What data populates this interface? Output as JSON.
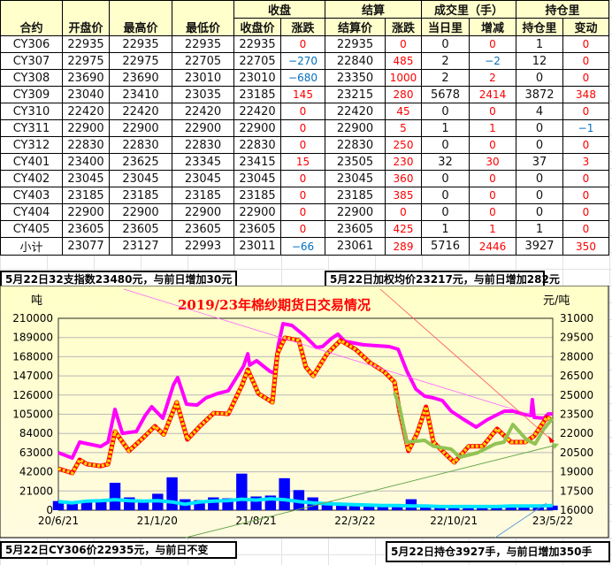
{
  "table": {
    "group_headers": {
      "close": "收盘",
      "settle": "结算",
      "volume": "成交里（手）",
      "oi": "持仓里"
    },
    "headers": [
      "合约",
      "开盘价",
      "最高价",
      "最低价",
      "收盘价",
      "涨跌",
      "结算价",
      "涨跌",
      "当日里",
      "增减",
      "持仓里",
      "变动"
    ],
    "rows": [
      [
        "CY306",
        "22935",
        "22935",
        "22935",
        "22935",
        "0",
        "22935",
        "0",
        "0",
        "0",
        "1",
        "0"
      ],
      [
        "CY307",
        "22975",
        "22975",
        "22705",
        "22705",
        "−270",
        "22840",
        "485",
        "2",
        "−2",
        "12",
        "0"
      ],
      [
        "CY308",
        "23690",
        "23690",
        "23010",
        "23010",
        "−680",
        "23350",
        "1000",
        "2",
        "2",
        "0",
        "0"
      ],
      [
        "CY309",
        "23040",
        "23410",
        "23035",
        "23185",
        "145",
        "23215",
        "280",
        "5678",
        "2414",
        "3872",
        "348"
      ],
      [
        "CY310",
        "22420",
        "22420",
        "22420",
        "22420",
        "0",
        "22420",
        "45",
        "0",
        "0",
        "4",
        "0"
      ],
      [
        "CY311",
        "22900",
        "22900",
        "22900",
        "22900",
        "0",
        "22900",
        "5",
        "1",
        "1",
        "0",
        "−1"
      ],
      [
        "CY312",
        "22830",
        "22830",
        "22830",
        "22830",
        "0",
        "22830",
        "250",
        "0",
        "0",
        "0",
        "0"
      ],
      [
        "CY401",
        "23400",
        "23625",
        "23345",
        "23415",
        "15",
        "23505",
        "230",
        "32",
        "30",
        "37",
        "3"
      ],
      [
        "CY402",
        "23045",
        "23045",
        "23045",
        "23045",
        "0",
        "23045",
        "360",
        "0",
        "0",
        "0",
        "0"
      ],
      [
        "CY403",
        "23185",
        "23185",
        "23185",
        "23185",
        "0",
        "23185",
        "385",
        "0",
        "0",
        "0",
        "0"
      ],
      [
        "CY404",
        "22900",
        "22900",
        "22900",
        "22900",
        "0",
        "22900",
        "0",
        "0",
        "0",
        "0",
        "0"
      ],
      [
        "CY405",
        "23605",
        "23605",
        "23605",
        "23605",
        "0",
        "23605",
        "425",
        "1",
        "1",
        "1",
        "0"
      ],
      [
        "小计",
        "23077",
        "23127",
        "22993",
        "23011",
        "−66",
        "23061",
        "289",
        "5716",
        "2446",
        "3927",
        "350"
      ]
    ]
  },
  "notes": {
    "top_left": "5月22日32支指数23480元，与前日增加30元",
    "top_right": "5月22日加权均价23217元，与前日增加282元",
    "bottom_left": "5月22日CY306价22935元，与前日不变",
    "bottom_right": "5月22日持仓3927手，与前日增加350手"
  },
  "colors": {
    "up": "#ff0000",
    "down": "#0070c0",
    "header_bg": "#ffffcc",
    "chart_bg": "#ffffc8"
  },
  "chart_data": {
    "type": "line",
    "title": "2019/23年棉纱期货日交易情况",
    "ylabel_left": "吨",
    "ylabel_right": "元/吨",
    "ylim_left": [
      0,
      210000
    ],
    "ylim_right": [
      16000,
      31000
    ],
    "yticks_left": [
      "210000",
      "189000",
      "168000",
      "147000",
      "126000",
      "105000",
      "84000",
      "63000",
      "42000",
      "21000",
      "0"
    ],
    "yticks_right": [
      "31000",
      "29500",
      "28000",
      "26500",
      "25000",
      "23500",
      "22000",
      "20500",
      "19000",
      "17500",
      "16000"
    ],
    "xlim": [
      "2020-06-21",
      "2023-05-22"
    ],
    "xticks": [
      [
        "2020-06-21",
        "20/6/21"
      ],
      [
        "2021-01-20",
        "21/1/20"
      ],
      [
        "2021-08-21",
        "21/8/21"
      ],
      [
        "2022-03-22",
        "22/3/22"
      ],
      [
        "2022-10-21",
        "22/10/21"
      ],
      [
        "2023-05-22",
        "23/5/22"
      ]
    ],
    "grid": true,
    "lines": [
      {
        "color": "#ff00ff",
        "axis": "right",
        "points": [
          [
            "2020-06-21",
            20490
          ],
          [
            "2020-07-21",
            20080
          ],
          [
            "2020-08-06",
            21320
          ],
          [
            "2020-09-20",
            20980
          ],
          [
            "2020-10-06",
            21320
          ],
          [
            "2020-10-21",
            23880
          ],
          [
            "2020-11-06",
            22010
          ],
          [
            "2020-12-06",
            22150
          ],
          [
            "2020-12-25",
            23400
          ],
          [
            "2021-01-08",
            24090
          ],
          [
            "2021-02-01",
            23190
          ],
          [
            "2021-02-24",
            25810
          ],
          [
            "2021-03-05",
            26370
          ],
          [
            "2021-03-24",
            24290
          ],
          [
            "2021-04-16",
            24220
          ],
          [
            "2021-05-05",
            24780
          ],
          [
            "2021-05-30",
            25120
          ],
          [
            "2021-06-22",
            25330
          ],
          [
            "2021-07-06",
            26160
          ],
          [
            "2021-07-25",
            27270
          ],
          [
            "2021-08-03",
            28230
          ],
          [
            "2021-08-07",
            27340
          ],
          [
            "2021-08-22",
            27680
          ],
          [
            "2021-09-20",
            26850
          ],
          [
            "2021-09-29",
            26710
          ],
          [
            "2021-10-08",
            28930
          ],
          [
            "2021-10-18",
            30580
          ],
          [
            "2021-11-06",
            30450
          ],
          [
            "2021-12-04",
            29620
          ],
          [
            "2021-12-29",
            28720
          ],
          [
            "2022-01-11",
            28790
          ],
          [
            "2022-01-30",
            29410
          ],
          [
            "2022-02-13",
            29760
          ],
          [
            "2022-02-28",
            29200
          ],
          [
            "2022-04-08",
            28930
          ],
          [
            "2022-06-04",
            28790
          ],
          [
            "2022-06-23",
            28580
          ],
          [
            "2022-07-12",
            26850
          ],
          [
            "2022-07-31",
            25470
          ],
          [
            "2022-08-19",
            24920
          ],
          [
            "2022-09-07",
            24780
          ],
          [
            "2022-09-26",
            24570
          ],
          [
            "2022-10-15",
            23740
          ],
          [
            "2022-11-13",
            23050
          ],
          [
            "2022-12-08",
            22500
          ],
          [
            "2022-12-31",
            23050
          ],
          [
            "2023-01-19",
            23400
          ],
          [
            "2023-02-07",
            23740
          ],
          [
            "2023-02-26",
            23740
          ],
          [
            "2023-03-17",
            23530
          ],
          [
            "2023-04-05",
            23400
          ],
          [
            "2023-04-08",
            24640
          ],
          [
            "2023-04-12",
            23260
          ],
          [
            "2023-05-03",
            23190
          ],
          [
            "2023-05-12",
            23530
          ],
          [
            "2023-05-22",
            23530
          ]
        ]
      },
      {
        "color": "#ff0000",
        "marker_color": "#ffd700",
        "axis": "right",
        "points": [
          [
            "2020-06-21",
            19250
          ],
          [
            "2020-07-21",
            18900
          ],
          [
            "2020-08-06",
            19940
          ],
          [
            "2020-08-21",
            19600
          ],
          [
            "2020-09-20",
            19450
          ],
          [
            "2020-10-06",
            19600
          ],
          [
            "2020-10-21",
            22150
          ],
          [
            "2020-11-20",
            20630
          ],
          [
            "2020-12-21",
            21670
          ],
          [
            "2021-01-15",
            22570
          ],
          [
            "2021-02-03",
            21900
          ],
          [
            "2021-03-03",
            24430
          ],
          [
            "2021-03-26",
            21530
          ],
          [
            "2021-04-22",
            22570
          ],
          [
            "2021-05-22",
            23600
          ],
          [
            "2021-06-22",
            23530
          ],
          [
            "2021-07-22",
            25810
          ],
          [
            "2021-08-03",
            26990
          ],
          [
            "2021-08-26",
            25120
          ],
          [
            "2021-09-10",
            24780
          ],
          [
            "2021-09-25",
            24430
          ],
          [
            "2021-10-06",
            28230
          ],
          [
            "2021-10-22",
            29480
          ],
          [
            "2021-11-21",
            29270
          ],
          [
            "2021-12-06",
            27200
          ],
          [
            "2021-12-22",
            26500
          ],
          [
            "2022-01-21",
            28230
          ],
          [
            "2022-02-19",
            29270
          ],
          [
            "2022-03-23",
            28580
          ],
          [
            "2022-04-23",
            27540
          ],
          [
            "2022-05-23",
            26850
          ],
          [
            "2022-06-15",
            26020
          ],
          [
            "2022-06-26",
            23740
          ],
          [
            "2022-07-15",
            20630
          ],
          [
            "2022-08-03",
            22010
          ],
          [
            "2022-08-22",
            24090
          ],
          [
            "2022-09-07",
            21320
          ],
          [
            "2022-09-30",
            20490
          ],
          [
            "2022-10-22",
            19730
          ],
          [
            "2022-11-22",
            21000
          ],
          [
            "2022-12-22",
            21000
          ],
          [
            "2023-01-22",
            22360
          ],
          [
            "2023-02-21",
            21320
          ],
          [
            "2023-03-24",
            21320
          ],
          [
            "2023-04-12",
            21800
          ],
          [
            "2023-05-09",
            23260
          ],
          [
            "2023-05-22",
            23011
          ]
        ]
      },
      {
        "color": "#92c353",
        "axis": "right",
        "points": [
          [
            "2022-06-15",
            25190
          ],
          [
            "2022-06-26",
            24090
          ],
          [
            "2022-07-11",
            21320
          ],
          [
            "2022-08-19",
            21460
          ],
          [
            "2022-09-07",
            21000
          ],
          [
            "2022-10-15",
            20770
          ],
          [
            "2022-11-03",
            20150
          ],
          [
            "2022-12-11",
            20490
          ],
          [
            "2023-01-18",
            21180
          ],
          [
            "2023-02-06",
            21320
          ],
          [
            "2023-02-25",
            22700
          ],
          [
            "2023-03-26",
            21530
          ],
          [
            "2023-04-14",
            21180
          ],
          [
            "2023-05-03",
            22360
          ],
          [
            "2023-05-22",
            23190
          ]
        ]
      },
      {
        "color": "#00e5ff",
        "axis": "left",
        "points": [
          [
            "2020-06-21",
            9500
          ],
          [
            "2020-07-21",
            8000
          ],
          [
            "2020-08-21",
            10000
          ],
          [
            "2020-09-21",
            10500
          ],
          [
            "2020-10-21",
            11500
          ],
          [
            "2020-11-21",
            10500
          ],
          [
            "2020-12-21",
            10000
          ],
          [
            "2021-01-21",
            10500
          ],
          [
            "2021-02-21",
            9000
          ],
          [
            "2021-03-21",
            6500
          ],
          [
            "2021-04-21",
            9000
          ],
          [
            "2021-05-21",
            10000
          ],
          [
            "2021-06-21",
            10500
          ],
          [
            "2021-07-21",
            12000
          ],
          [
            "2021-08-21",
            11000
          ],
          [
            "2021-09-21",
            12500
          ],
          [
            "2021-10-21",
            11500
          ],
          [
            "2021-11-21",
            9500
          ],
          [
            "2021-12-21",
            8000
          ],
          [
            "2022-01-21",
            7000
          ],
          [
            "2022-02-21",
            6500
          ],
          [
            "2022-03-21",
            6000
          ],
          [
            "2022-04-21",
            5500
          ],
          [
            "2022-05-21",
            5000
          ],
          [
            "2022-06-21",
            5000
          ],
          [
            "2022-07-21",
            4500
          ],
          [
            "2022-08-21",
            4500
          ],
          [
            "2022-09-21",
            4000
          ],
          [
            "2022-10-21",
            4000
          ],
          [
            "2022-11-21",
            4000
          ],
          [
            "2022-12-21",
            4000
          ],
          [
            "2023-01-21",
            4000
          ],
          [
            "2023-02-21",
            4500
          ],
          [
            "2023-03-21",
            4500
          ],
          [
            "2023-04-21",
            4500
          ],
          [
            "2023-05-22",
            5000
          ]
        ]
      }
    ],
    "bars": {
      "color": "#0000ff",
      "axis": "left",
      "points": [
        [
          "2020-06-21",
          10000
        ],
        [
          "2020-07-21",
          9000
        ],
        [
          "2020-08-21",
          11000
        ],
        [
          "2020-09-21",
          9000
        ],
        [
          "2020-10-21",
          30000
        ],
        [
          "2020-11-21",
          14000
        ],
        [
          "2020-12-21",
          11000
        ],
        [
          "2021-01-21",
          18000
        ],
        [
          "2021-02-21",
          36000
        ],
        [
          "2021-03-21",
          12000
        ],
        [
          "2021-04-21",
          11000
        ],
        [
          "2021-05-21",
          14000
        ],
        [
          "2021-06-21",
          13000
        ],
        [
          "2021-07-21",
          40000
        ],
        [
          "2021-08-21",
          15000
        ],
        [
          "2021-09-21",
          16000
        ],
        [
          "2021-10-21",
          35000
        ],
        [
          "2021-11-21",
          22000
        ],
        [
          "2021-12-21",
          14000
        ],
        [
          "2022-01-21",
          9000
        ],
        [
          "2022-02-21",
          8000
        ],
        [
          "2022-03-21",
          7000
        ],
        [
          "2022-04-21",
          7000
        ],
        [
          "2022-05-21",
          6000
        ],
        [
          "2022-06-21",
          5000
        ],
        [
          "2022-07-21",
          12000
        ],
        [
          "2022-08-21",
          4000
        ],
        [
          "2022-09-21",
          4000
        ],
        [
          "2022-10-21",
          5000
        ],
        [
          "2022-11-21",
          4000
        ],
        [
          "2022-12-21",
          4000
        ],
        [
          "2023-01-21",
          4000
        ],
        [
          "2023-02-21",
          4000
        ],
        [
          "2023-03-21",
          5000
        ],
        [
          "2023-04-21",
          5000
        ],
        [
          "2023-05-21",
          5000
        ]
      ]
    }
  }
}
